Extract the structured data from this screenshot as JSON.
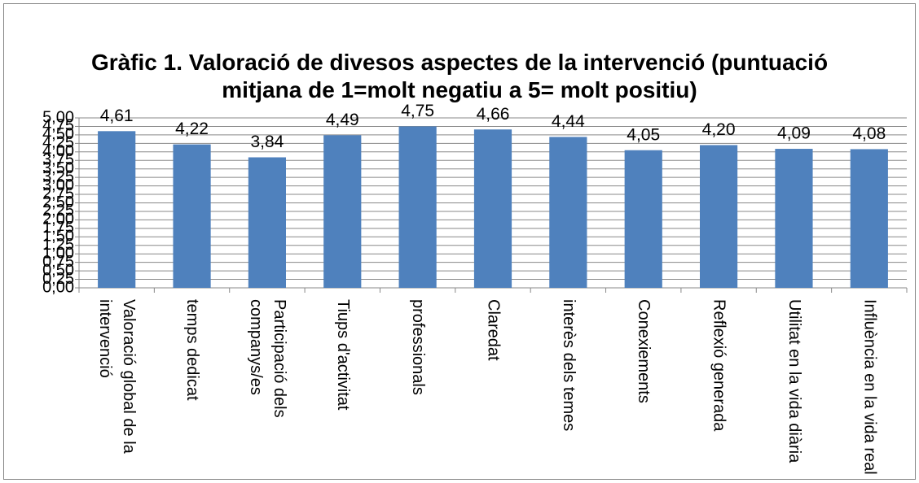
{
  "chart_data": {
    "type": "bar",
    "title": "Gràfic 1. Valoració de divesos aspectes de la intervenció (puntuació mitjana de 1=molt negatiu a 5= molt positiu)",
    "categories": [
      "Valoració global de la intervenció",
      "temps dedicat",
      "Participació dels companys/es",
      "Tiups d'activitat",
      "professionals",
      "Claredat",
      "interès dels temes",
      "Conexiements",
      "Reflexió generada",
      "Utilitat en la vida diària",
      "Influència en la vida real"
    ],
    "values": [
      4.61,
      4.22,
      3.84,
      4.49,
      4.75,
      4.66,
      4.44,
      4.05,
      4.2,
      4.09,
      4.08
    ],
    "value_labels": [
      "4,61",
      "4,22",
      "3,84",
      "4,49",
      "4,75",
      "4,66",
      "4,44",
      "4,05",
      "4,20",
      "4,09",
      "4,08"
    ],
    "color": "#4f81bd",
    "ylim": [
      0,
      5
    ],
    "yticks": [
      {
        "value": 0,
        "label": "0,00"
      },
      {
        "value": 0.25,
        "label": "0,25"
      },
      {
        "value": 0.5,
        "label": "0,50"
      },
      {
        "value": 0.75,
        "label": "0,75"
      },
      {
        "value": 1,
        "label": "1,00"
      },
      {
        "value": 1.25,
        "label": "1,25"
      },
      {
        "value": 1.5,
        "label": "1,50"
      },
      {
        "value": 1.75,
        "label": "1,75"
      },
      {
        "value": 2,
        "label": "2,00"
      },
      {
        "value": 2.25,
        "label": "2,25"
      },
      {
        "value": 2.5,
        "label": "2,50"
      },
      {
        "value": 2.75,
        "label": "2,75"
      },
      {
        "value": 3,
        "label": "3,00"
      },
      {
        "value": 3.25,
        "label": "3,25"
      },
      {
        "value": 3.5,
        "label": "3,50"
      },
      {
        "value": 3.75,
        "label": "3,75"
      },
      {
        "value": 4,
        "label": "4,00"
      },
      {
        "value": 4.25,
        "label": "4,25"
      },
      {
        "value": 4.5,
        "label": "4,50"
      },
      {
        "value": 4.75,
        "label": "4,75"
      },
      {
        "value": 5,
        "label": "5,00"
      }
    ],
    "grid": true
  }
}
